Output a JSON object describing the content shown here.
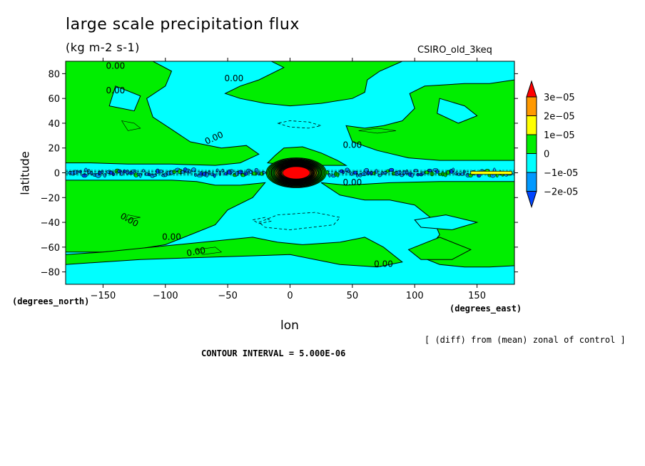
{
  "header": {
    "title": "large scale precipitation flux",
    "units": "(kg m-2 s-1)",
    "model": "CSIRO_old_3keq"
  },
  "axes": {
    "xlabel": "lon",
    "ylabel": "latitude",
    "x_units": "(degrees_east)",
    "y_units": "(degrees_north)"
  },
  "footer": {
    "note": "[ (diff) from (mean) zonal of control ]",
    "contour_interval": "CONTOUR INTERVAL = 5.000E-06"
  },
  "chart_data": {
    "type": "heatmap",
    "xlim": [
      -180,
      180
    ],
    "ylim": [
      -90,
      90
    ],
    "x_ticks": [
      -150,
      -100,
      -50,
      0,
      50,
      100,
      150
    ],
    "x_tick_labels": [
      "-150",
      "-100",
      "-50",
      "0",
      "50",
      "100",
      "150"
    ],
    "y_ticks": [
      -80,
      -60,
      -40,
      -20,
      0,
      20,
      40,
      60,
      80
    ],
    "y_tick_labels": [
      "-80",
      "-60",
      "-40",
      "-20",
      "0",
      "20",
      "40",
      "60",
      "80"
    ],
    "colorbar": {
      "levels": [
        "3e-05",
        "2e-05",
        "1e-05",
        "0",
        "-1e-05",
        "-2e-05"
      ],
      "colors": [
        "#ff0000",
        "#ff9900",
        "#ffff00",
        "#00ee00",
        "#00ffff",
        "#0099ff",
        "#0044ff"
      ]
    },
    "contour_labels": [
      "0.00"
    ],
    "background_color": "#00ffff",
    "positive_color": "#00ee00",
    "peak": {
      "lon": 5,
      "lat": 0
    }
  }
}
